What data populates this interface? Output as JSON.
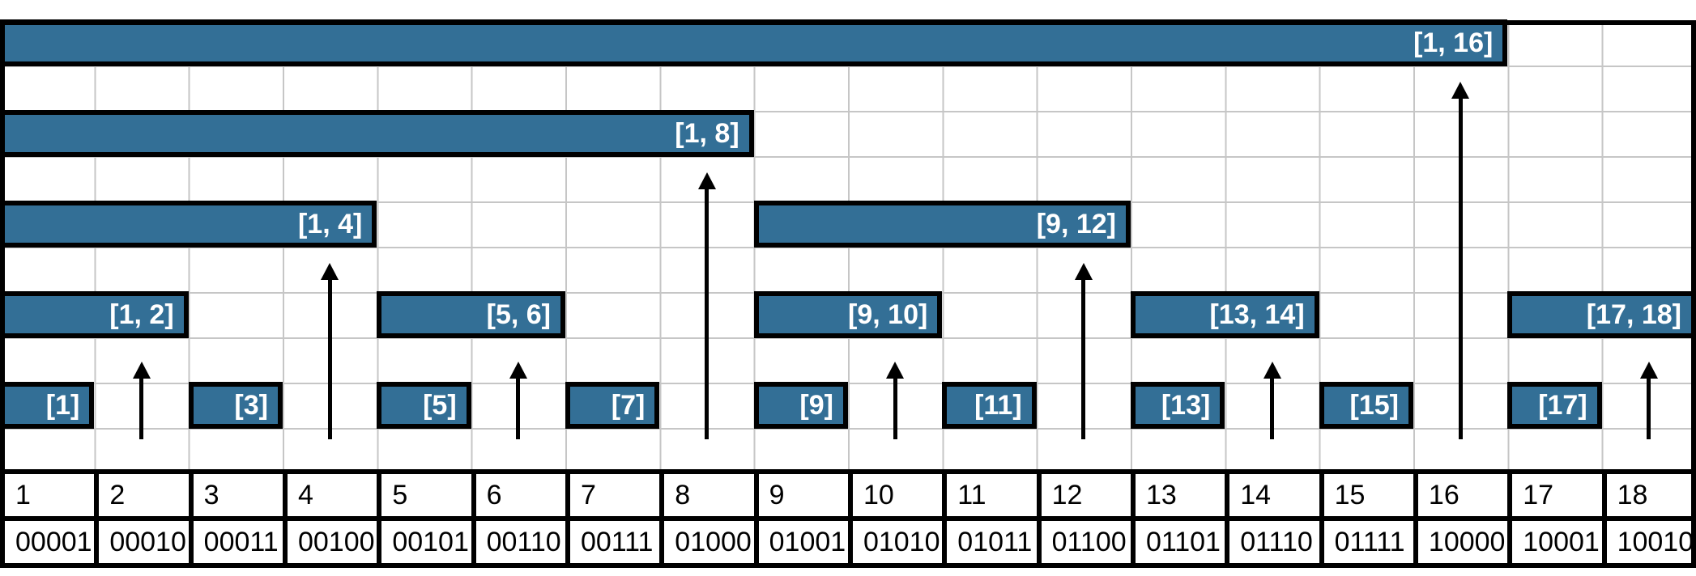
{
  "diagram": {
    "type": "fenwick-tree-interval-diagram",
    "columns": 18,
    "grid_rows": 10,
    "bars": [
      {
        "label": "[1, 16]",
        "start": 1,
        "end": 16,
        "row": 0
      },
      {
        "label": "[1, 8]",
        "start": 1,
        "end": 8,
        "row": 2
      },
      {
        "label": "[1, 4]",
        "start": 1,
        "end": 4,
        "row": 4
      },
      {
        "label": "[9, 12]",
        "start": 9,
        "end": 12,
        "row": 4
      },
      {
        "label": "[1, 2]",
        "start": 1,
        "end": 2,
        "row": 6
      },
      {
        "label": "[5, 6]",
        "start": 5,
        "end": 6,
        "row": 6
      },
      {
        "label": "[9, 10]",
        "start": 9,
        "end": 10,
        "row": 6
      },
      {
        "label": "[13, 14]",
        "start": 13,
        "end": 14,
        "row": 6
      },
      {
        "label": "[17, 18]",
        "start": 17,
        "end": 18,
        "row": 6
      },
      {
        "label": "[1]",
        "start": 1,
        "end": 1,
        "row": 8
      },
      {
        "label": "[3]",
        "start": 3,
        "end": 3,
        "row": 8
      },
      {
        "label": "[5]",
        "start": 5,
        "end": 5,
        "row": 8
      },
      {
        "label": "[7]",
        "start": 7,
        "end": 7,
        "row": 8
      },
      {
        "label": "[9]",
        "start": 9,
        "end": 9,
        "row": 8
      },
      {
        "label": "[11]",
        "start": 11,
        "end": 11,
        "row": 8
      },
      {
        "label": "[13]",
        "start": 13,
        "end": 13,
        "row": 8
      },
      {
        "label": "[15]",
        "start": 15,
        "end": 15,
        "row": 8
      },
      {
        "label": "[17]",
        "start": 17,
        "end": 17,
        "row": 8
      }
    ],
    "arrows": [
      {
        "col": 2,
        "target": "[1, 2]"
      },
      {
        "col": 4,
        "target": "[1, 4]"
      },
      {
        "col": 6,
        "target": "[5, 6]"
      },
      {
        "col": 8,
        "target": "[1, 8]"
      },
      {
        "col": 10,
        "target": "[9, 10]"
      },
      {
        "col": 12,
        "target": "[9, 12]"
      },
      {
        "col": 14,
        "target": "[13, 14]"
      },
      {
        "col": 16,
        "target": "[1, 16]"
      },
      {
        "col": 18,
        "target": "[17, 18]"
      }
    ],
    "colors": {
      "bar_fill": "#336F96",
      "bar_border": "#000000",
      "bar_label_text": "#FFFFFF",
      "grid_line": "#C6C6C6",
      "arrow": "#000000",
      "table_border": "#000000",
      "table_text": "#000000",
      "background": "#FFFFFF"
    }
  },
  "table": {
    "indices": [
      "1",
      "2",
      "3",
      "4",
      "5",
      "6",
      "7",
      "8",
      "9",
      "10",
      "11",
      "12",
      "13",
      "14",
      "15",
      "16",
      "17",
      "18"
    ],
    "binary": [
      "00001",
      "00010",
      "00011",
      "00100",
      "00101",
      "00110",
      "00111",
      "01000",
      "01001",
      "01010",
      "01011",
      "01100",
      "01101",
      "01110",
      "01111",
      "10000",
      "10001",
      "10010"
    ]
  }
}
